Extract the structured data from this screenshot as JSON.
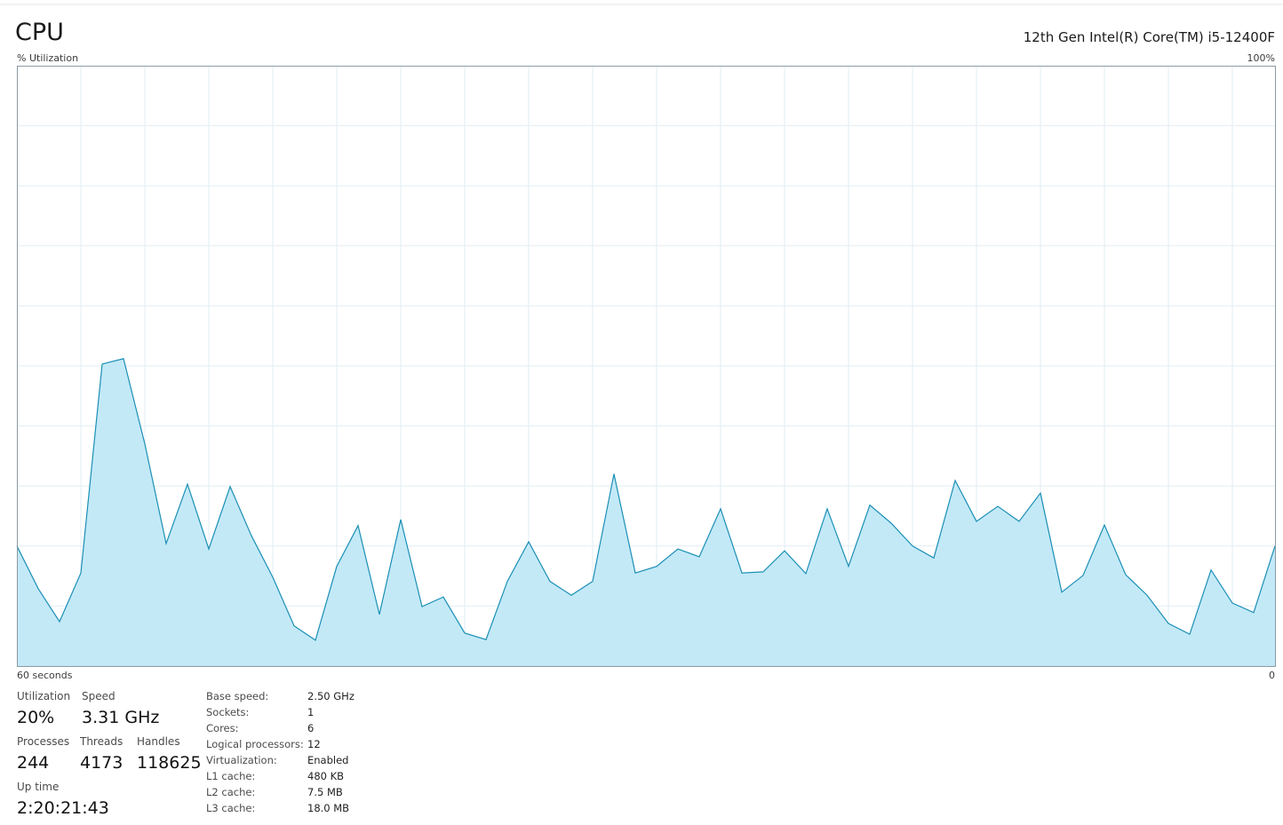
{
  "header": {
    "title": "CPU",
    "processor": "12th Gen Intel(R) Core(TM) i5-12400F"
  },
  "chart_data": {
    "type": "area",
    "ylabel": "% Utilization",
    "values": [
      20,
      12.9,
      7.4,
      15.5,
      50.3,
      51.2,
      37,
      20.4,
      30.3,
      19.5,
      29.9,
      21.7,
      14.8,
      6.7,
      4.3,
      16.6,
      23.4,
      8.6,
      24.4,
      9.9,
      11.5,
      5.5,
      4.4,
      14.1,
      20.7,
      14.1,
      11.8,
      14.1,
      32,
      15.5,
      16.6,
      19.5,
      18.2,
      26.2,
      15.5,
      15.7,
      19.2,
      15.4,
      26.2,
      16.6,
      26.8,
      23.8,
      20,
      18,
      30.9,
      24.1,
      26.6,
      24.1,
      28.8,
      12.3,
      15.1,
      23.5,
      15.2,
      11.8,
      7.1,
      5.3,
      16,
      10.5,
      8.9,
      20
    ],
    "x_axis": {
      "start": "60 seconds",
      "end": "0"
    },
    "ylim": [
      0,
      100
    ],
    "yticks": [
      {
        "value": 100,
        "label": "100%"
      }
    ],
    "grid": true,
    "color": "#1b8fb5",
    "fill": "#c3e9f7"
  },
  "stats": [
    {
      "label": "Utilization",
      "value": "20%"
    },
    {
      "label": "Speed",
      "value": "3.31 GHz"
    },
    {
      "label": "Processes",
      "value": "244"
    },
    {
      "label": "Threads",
      "value": "4173"
    },
    {
      "label": "Handles",
      "value": "118625"
    },
    {
      "label": "Up time",
      "value": "2:20:21:43"
    }
  ],
  "details": [
    {
      "label": "Base speed:",
      "value": "2.50 GHz"
    },
    {
      "label": "Sockets:",
      "value": "1"
    },
    {
      "label": "Cores:",
      "value": "6"
    },
    {
      "label": "Logical processors:",
      "value": "12"
    },
    {
      "label": "Virtualization:",
      "value": "Enabled"
    },
    {
      "label": "L1 cache:",
      "value": "480 KB"
    },
    {
      "label": "L2 cache:",
      "value": "7.5 MB"
    },
    {
      "label": "L3 cache:",
      "value": "18.0 MB"
    }
  ]
}
